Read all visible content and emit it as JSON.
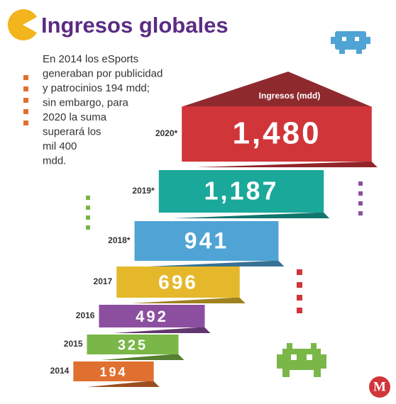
{
  "chart_data": {
    "type": "bar",
    "title": "Ingresos globales",
    "description": [
      "En 2014 los eSports",
      "generaban por publicidad",
      "y patrocinios 194 mdd;",
      "sin embargo, para",
      "2020 la suma",
      "superará los",
      "mil 400",
      "mdd."
    ],
    "header": "Ingresos (mdd)",
    "categories": [
      "2014",
      "2015",
      "2016",
      "2017",
      "2018*",
      "2019*",
      "2020*"
    ],
    "values": [
      194,
      325,
      492,
      696,
      941,
      1187,
      1480
    ],
    "value_labels": [
      "194",
      "325",
      "492",
      "696",
      "941",
      "1,187",
      "1,480"
    ],
    "colors": [
      "#e0702f",
      "#7ab648",
      "#8c4f9f",
      "#e5b82c",
      "#4fa3d5",
      "#1aa89a",
      "#d0353a"
    ],
    "logo": "M"
  }
}
